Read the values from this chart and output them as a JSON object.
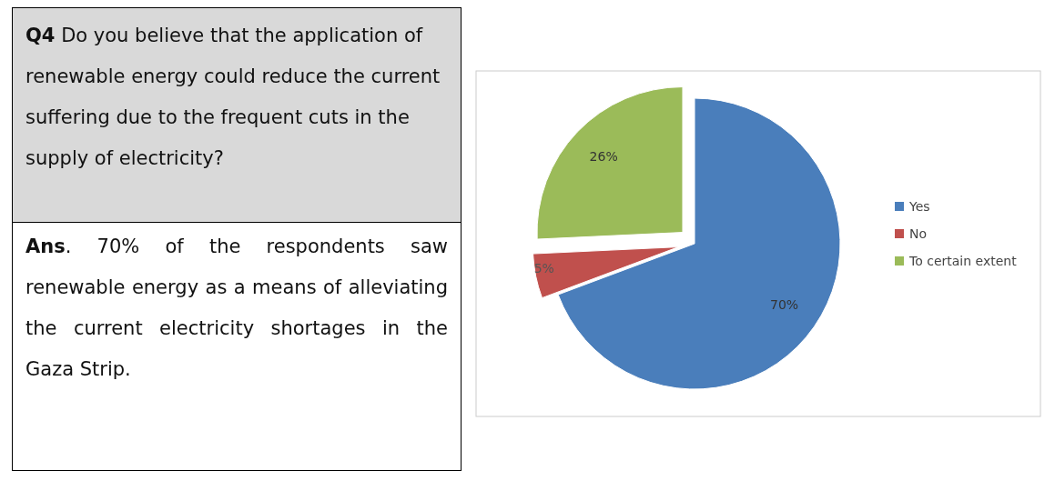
{
  "chart_data": {
    "type": "pie",
    "title": "Q4 Do you believe that the application of renewable energy could reduce the current suffering due to the frequent cuts in the supply of electricity?",
    "annotations": [
      "Ans. 70% of the respondents saw renewable energy as a means of alleviating the current electricity shortages in the Gaza Strip."
    ],
    "categories": [
      "Yes",
      "No",
      "To certain extent"
    ],
    "values": [
      70,
      5,
      26
    ],
    "value_labels": [
      "70%",
      "5%",
      "26%"
    ],
    "colors": [
      "#4a7ebb",
      "#c0504d",
      "#9bbb59"
    ],
    "legend": "right"
  }
}
